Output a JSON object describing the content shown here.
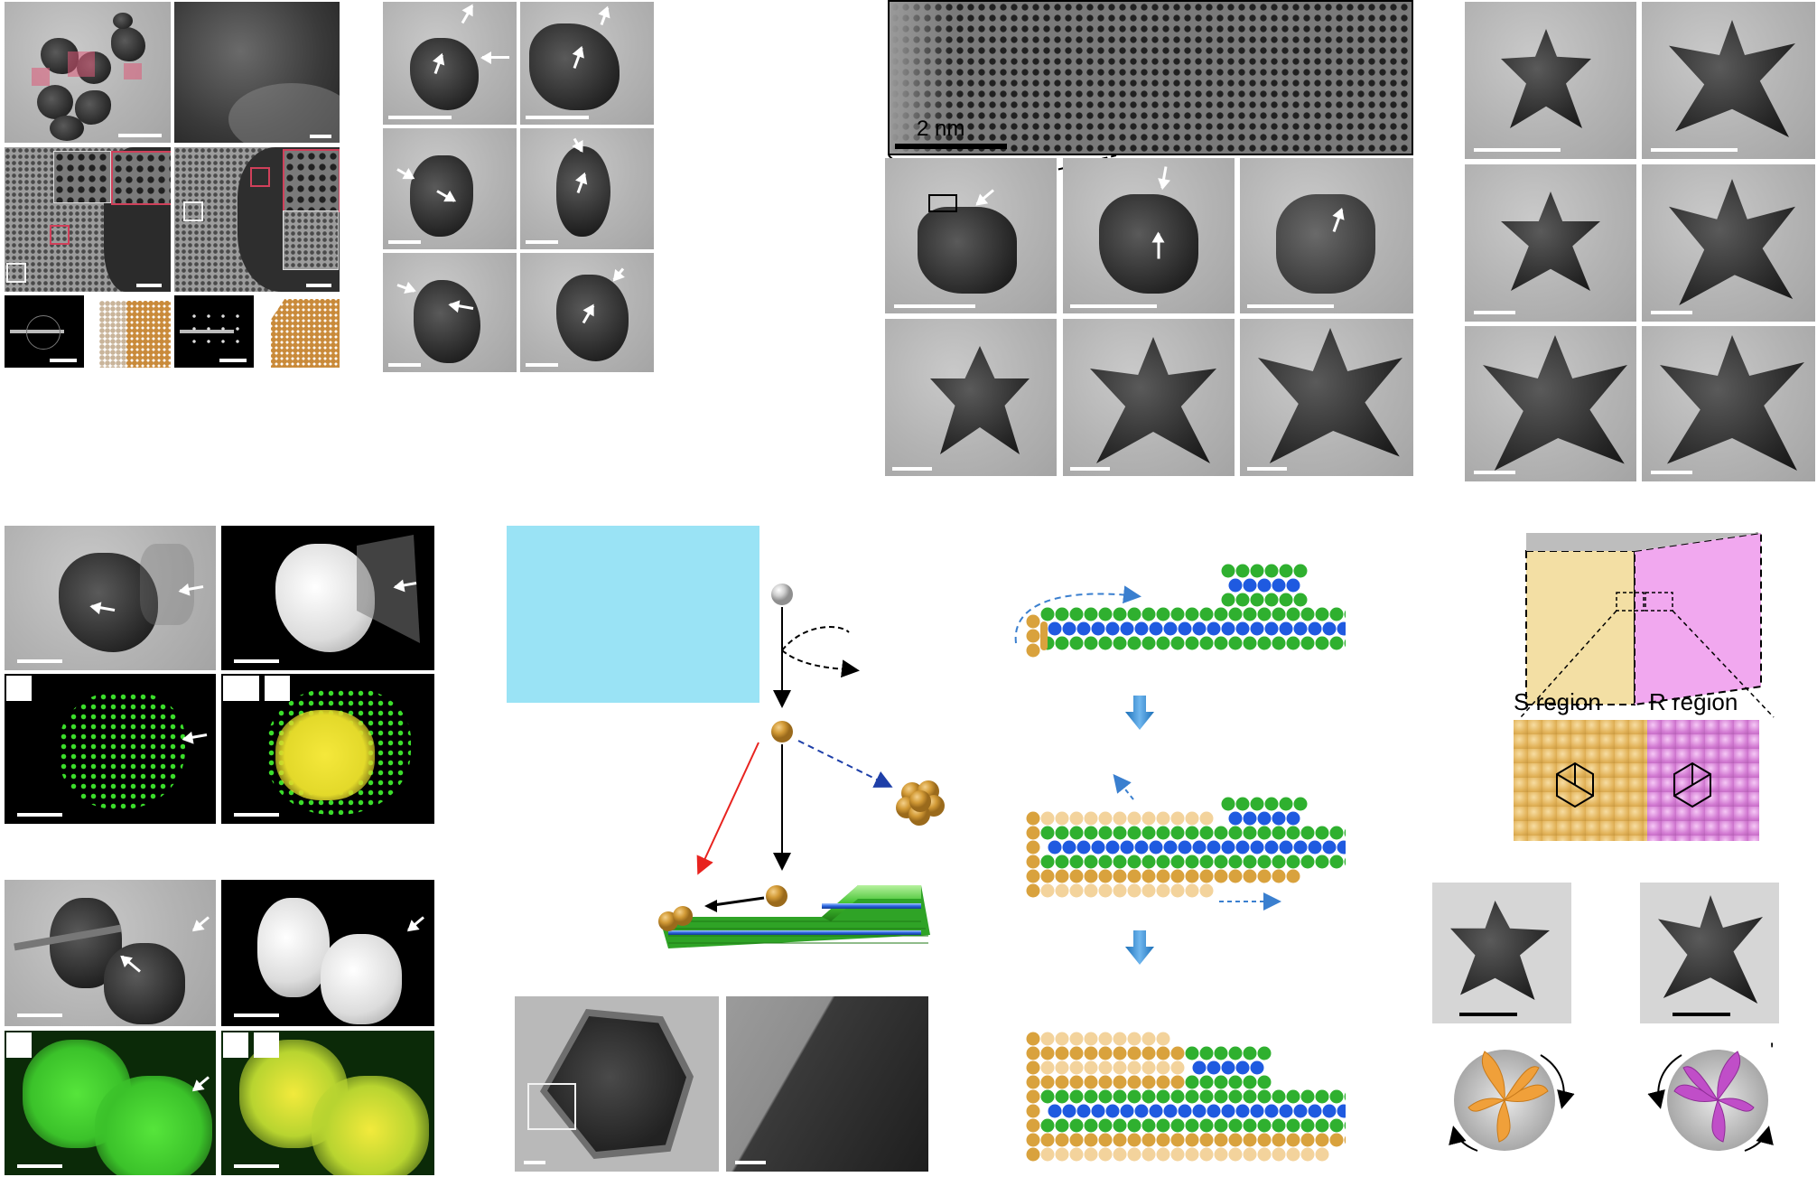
{
  "figure": {
    "scale_text": "2 nm",
    "region_labels": {
      "s": "S region",
      "r": "R region"
    },
    "tick_mark": "'"
  },
  "colors": {
    "gold": "#d9a23d",
    "green": "#2fb02f",
    "blue": "#1f5ae0",
    "pale_gold": "#f3d39c",
    "pink": "#e8a8e8",
    "beige": "#f3dfa4",
    "cyan_box": "#9ae3f5",
    "red_arrow": "#e8231f",
    "blue_dashed_arrow": "#1e3fa8",
    "steel_blue_arrow": "#3a7fcf",
    "indicator_box": "#d0405a"
  }
}
